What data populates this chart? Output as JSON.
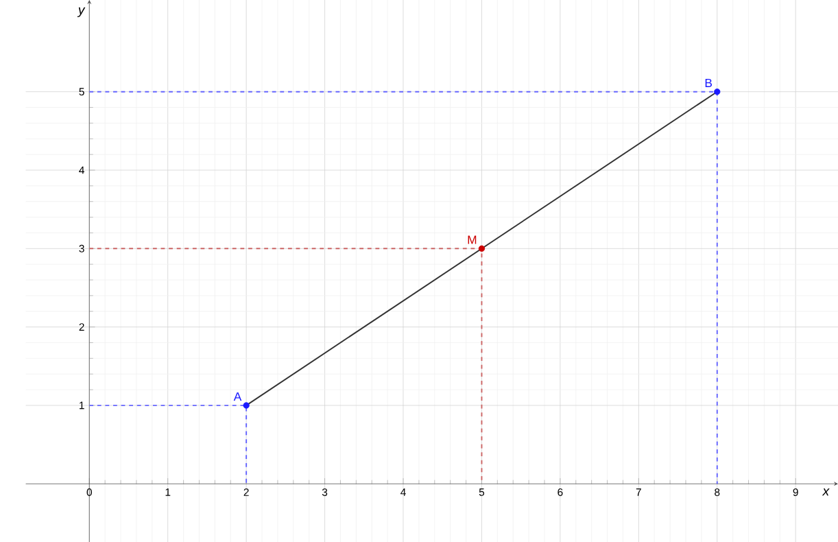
{
  "chart_data": {
    "type": "line",
    "xlabel": "x",
    "ylabel": "y",
    "xlim": [
      -0.81,
      9.54
    ],
    "ylim": [
      -0.75,
      6.17
    ],
    "xticks": [
      0,
      1,
      2,
      3,
      4,
      5,
      6,
      7,
      8,
      9
    ],
    "yticks": [
      1,
      2,
      3,
      4,
      5
    ],
    "grid": true,
    "series": [
      {
        "color": "#6666ff",
        "line_style": "dashed",
        "x": [
          0,
          2,
          2
        ],
        "values": [
          1,
          1,
          0
        ]
      },
      {
        "color": "#6666ff",
        "line_style": "dashed",
        "x": [
          0,
          8,
          8
        ],
        "values": [
          5,
          5,
          0
        ]
      },
      {
        "color": "#cc6666",
        "line_style": "dashed",
        "x": [
          0,
          5,
          5
        ],
        "values": [
          3,
          3,
          0
        ]
      },
      {
        "color": "#333333",
        "line_style": "solid",
        "x": [
          2,
          8
        ],
        "values": [
          1,
          5
        ]
      },
      {
        "type": "scatter",
        "marker": "circle",
        "x": [
          2,
          5,
          8
        ],
        "values": [
          1,
          3,
          5
        ],
        "colors": [
          "#1a1aff",
          "#cc0000",
          "#1a1aff"
        ]
      }
    ],
    "annotations": [
      {
        "text": "A",
        "x": 2,
        "y": 1
      },
      {
        "text": "M",
        "x": 5,
        "y": 3
      },
      {
        "text": "B",
        "x": 8,
        "y": 5
      }
    ]
  }
}
